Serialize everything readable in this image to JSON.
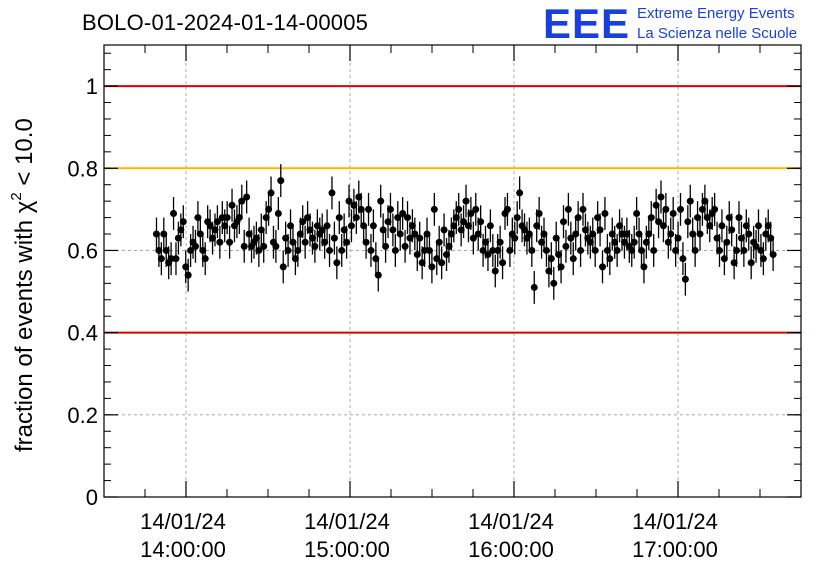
{
  "title": "BOLO-01-2024-01-14-00005",
  "logo": {
    "mark": "EEE",
    "line1": "Extreme Energy Events",
    "line2": "La Scienza nelle Scuole"
  },
  "colors": {
    "limit_red": "#e00000",
    "limit_yellow": "#ffb400",
    "marker": "#000000",
    "logo_blue": "#1a3fe0",
    "grid": "#999999"
  },
  "chart_data": {
    "type": "scatter",
    "ylabel_prefix": "fraction of events with ",
    "ylabel_symbol": "χ",
    "ylabel_sup": "2",
    "ylabel_suffix": " < 10.0",
    "ylim": [
      0,
      1.1
    ],
    "xlim_hours": [
      13.5,
      17.75
    ],
    "y_ticks": [
      {
        "value": 0,
        "label": "0"
      },
      {
        "value": 0.2,
        "label": "0.2"
      },
      {
        "value": 0.4,
        "label": "0.4"
      },
      {
        "value": 0.6,
        "label": "0.6"
      },
      {
        "value": 0.8,
        "label": "0.8"
      },
      {
        "value": 1.0,
        "label": "1"
      }
    ],
    "x_ticks": [
      {
        "hour": 14,
        "date": "14/01/24",
        "time": "14:00:00"
      },
      {
        "hour": 15,
        "date": "14/01/24",
        "time": "15:00:00"
      },
      {
        "hour": 16,
        "date": "14/01/24",
        "time": "16:00:00"
      },
      {
        "hour": 17,
        "date": "14/01/24",
        "time": "17:00:00"
      }
    ],
    "grid": true,
    "reference_lines": [
      {
        "y": 1.0,
        "color": "red"
      },
      {
        "y": 0.8,
        "color": "yellow"
      },
      {
        "y": 0.4,
        "color": "red"
      }
    ],
    "error_bar": 0.04,
    "x_start_hour": 13.82,
    "x_end_hour": 17.58,
    "y": [
      0.64,
      0.6,
      0.58,
      0.64,
      0.6,
      0.57,
      0.58,
      0.69,
      0.58,
      0.63,
      0.65,
      0.67,
      0.56,
      0.54,
      0.6,
      0.62,
      0.61,
      0.68,
      0.64,
      0.6,
      0.58,
      0.67,
      0.66,
      0.63,
      0.65,
      0.67,
      0.62,
      0.68,
      0.66,
      0.68,
      0.62,
      0.71,
      0.66,
      0.67,
      0.68,
      0.72,
      0.61,
      0.73,
      0.64,
      0.61,
      0.62,
      0.63,
      0.6,
      0.65,
      0.61,
      0.68,
      0.7,
      0.74,
      0.62,
      0.61,
      0.69,
      0.77,
      0.56,
      0.63,
      0.6,
      0.66,
      0.62,
      0.58,
      0.6,
      0.64,
      0.67,
      0.62,
      0.68,
      0.65,
      0.63,
      0.61,
      0.66,
      0.64,
      0.65,
      0.62,
      0.66,
      0.6,
      0.74,
      0.63,
      0.57,
      0.68,
      0.6,
      0.65,
      0.62,
      0.72,
      0.66,
      0.71,
      0.68,
      0.73,
      0.7,
      0.66,
      0.62,
      0.7,
      0.6,
      0.66,
      0.58,
      0.54,
      0.72,
      0.65,
      0.61,
      0.67,
      0.7,
      0.65,
      0.6,
      0.68,
      0.64,
      0.69,
      0.61,
      0.68,
      0.63,
      0.66,
      0.64,
      0.59,
      0.63,
      0.57,
      0.6,
      0.64,
      0.6,
      0.56,
      0.7,
      0.58,
      0.62,
      0.57,
      0.65,
      0.59,
      0.61,
      0.64,
      0.66,
      0.68,
      0.7,
      0.65,
      0.67,
      0.72,
      0.66,
      0.69,
      0.63,
      0.7,
      0.64,
      0.67,
      0.6,
      0.62,
      0.59,
      0.66,
      0.6,
      0.55,
      0.6,
      0.62,
      0.57,
      0.69,
      0.7,
      0.6,
      0.64,
      0.63,
      0.68,
      0.74,
      0.66,
      0.65,
      0.63,
      0.64,
      0.6,
      0.51,
      0.66,
      0.69,
      0.62,
      0.64,
      0.6,
      0.55,
      0.58,
      0.52,
      0.63,
      0.59,
      0.56,
      0.67,
      0.61,
      0.7,
      0.63,
      0.58,
      0.64,
      0.68,
      0.6,
      0.7,
      0.65,
      0.63,
      0.62,
      0.64,
      0.6,
      0.68,
      0.65,
      0.56,
      0.69,
      0.6,
      0.58,
      0.64,
      0.62,
      0.6,
      0.66,
      0.64,
      0.62,
      0.64,
      0.61,
      0.6,
      0.62,
      0.69,
      0.64,
      0.6,
      0.56,
      0.62,
      0.64,
      0.68,
      0.6,
      0.71,
      0.67,
      0.73,
      0.66,
      0.7,
      0.62,
      0.64,
      0.69,
      0.6,
      0.63,
      0.7,
      0.58,
      0.53,
      0.67,
      0.72,
      0.64,
      0.6,
      0.68,
      0.64,
      0.7,
      0.72,
      0.68,
      0.66,
      0.69,
      0.7,
      0.63,
      0.6,
      0.66,
      0.58,
      0.62,
      0.68,
      0.65,
      0.57,
      0.6,
      0.68,
      0.63,
      0.6,
      0.66,
      0.64,
      0.57,
      0.62,
      0.61,
      0.66,
      0.6,
      0.58,
      0.64,
      0.66,
      0.63,
      0.59
    ]
  }
}
